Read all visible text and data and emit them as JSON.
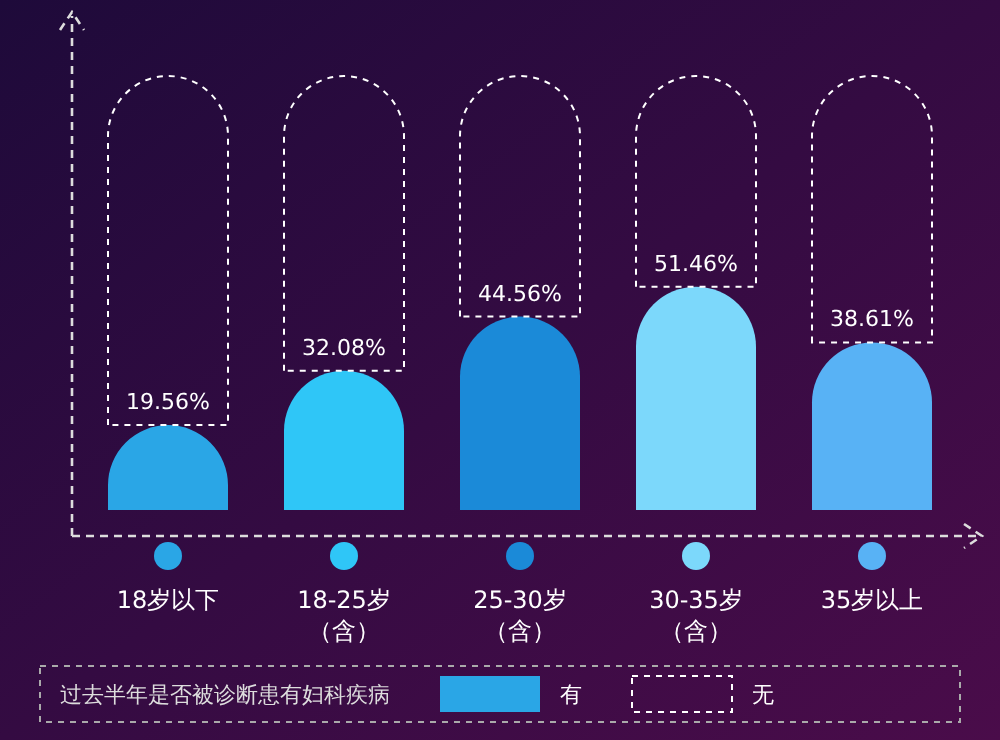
{
  "chart_data": {
    "type": "bar",
    "stacked": true,
    "categories": [
      "18岁以下",
      "18-25岁（含）",
      "25-30岁（含）",
      "30-35岁（含）",
      "35岁以上"
    ],
    "legend": "bottom",
    "legend_title": "过去半年是否被诊断患有妇科疾病",
    "series": [
      {
        "name": "有",
        "color": "#2aa6e6",
        "colors": [
          "#2aa6e6",
          "#2fc6f7",
          "#1b8ad8",
          "#7cd8fb",
          "#58b2f5"
        ],
        "values": [
          19.56,
          32.08,
          44.56,
          51.46,
          38.61
        ],
        "value_labels": [
          "19.56%",
          "32.08%",
          "44.56%",
          "51.46%",
          "38.61%"
        ]
      },
      {
        "name": "无",
        "color": "#ffffff",
        "line_style": "dashed",
        "values": [
          80.44,
          67.92,
          55.44,
          48.54,
          61.39
        ]
      }
    ]
  }
}
